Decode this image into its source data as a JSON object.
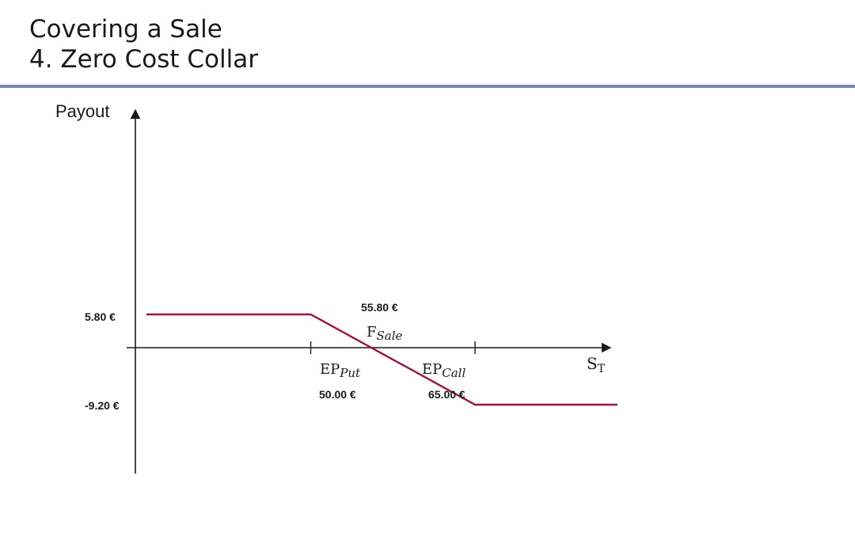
{
  "slide": {
    "title": "Covering a Sale",
    "subtitle": "4. Zero Cost Collar"
  },
  "chart_data": {
    "type": "line",
    "ylabel": "Payout",
    "xlabel_main": "S",
    "xlabel_sub": "T",
    "series": [
      {
        "x": [
          35,
          50,
          65,
          78
        ],
        "y": [
          5.8,
          5.8,
          -9.2,
          -9.2
        ],
        "color": "#a0143c"
      }
    ],
    "annotations": {
      "y_top_value": "5.80 €",
      "y_bottom_value": "-9.20 €",
      "ep_put": {
        "main": "EP",
        "sub": "Put",
        "value": "50.00 €",
        "x": 50
      },
      "f_sale": {
        "main": "F",
        "sub": "Sale",
        "value": "55.80 €",
        "x": 55.8
      },
      "ep_call": {
        "main": "EP",
        "sub": "Call",
        "value": "65.00 €",
        "x": 65
      }
    },
    "x_domain": [
      34.5,
      78
    ],
    "y_domain": [
      -9.2,
      5.8
    ]
  }
}
